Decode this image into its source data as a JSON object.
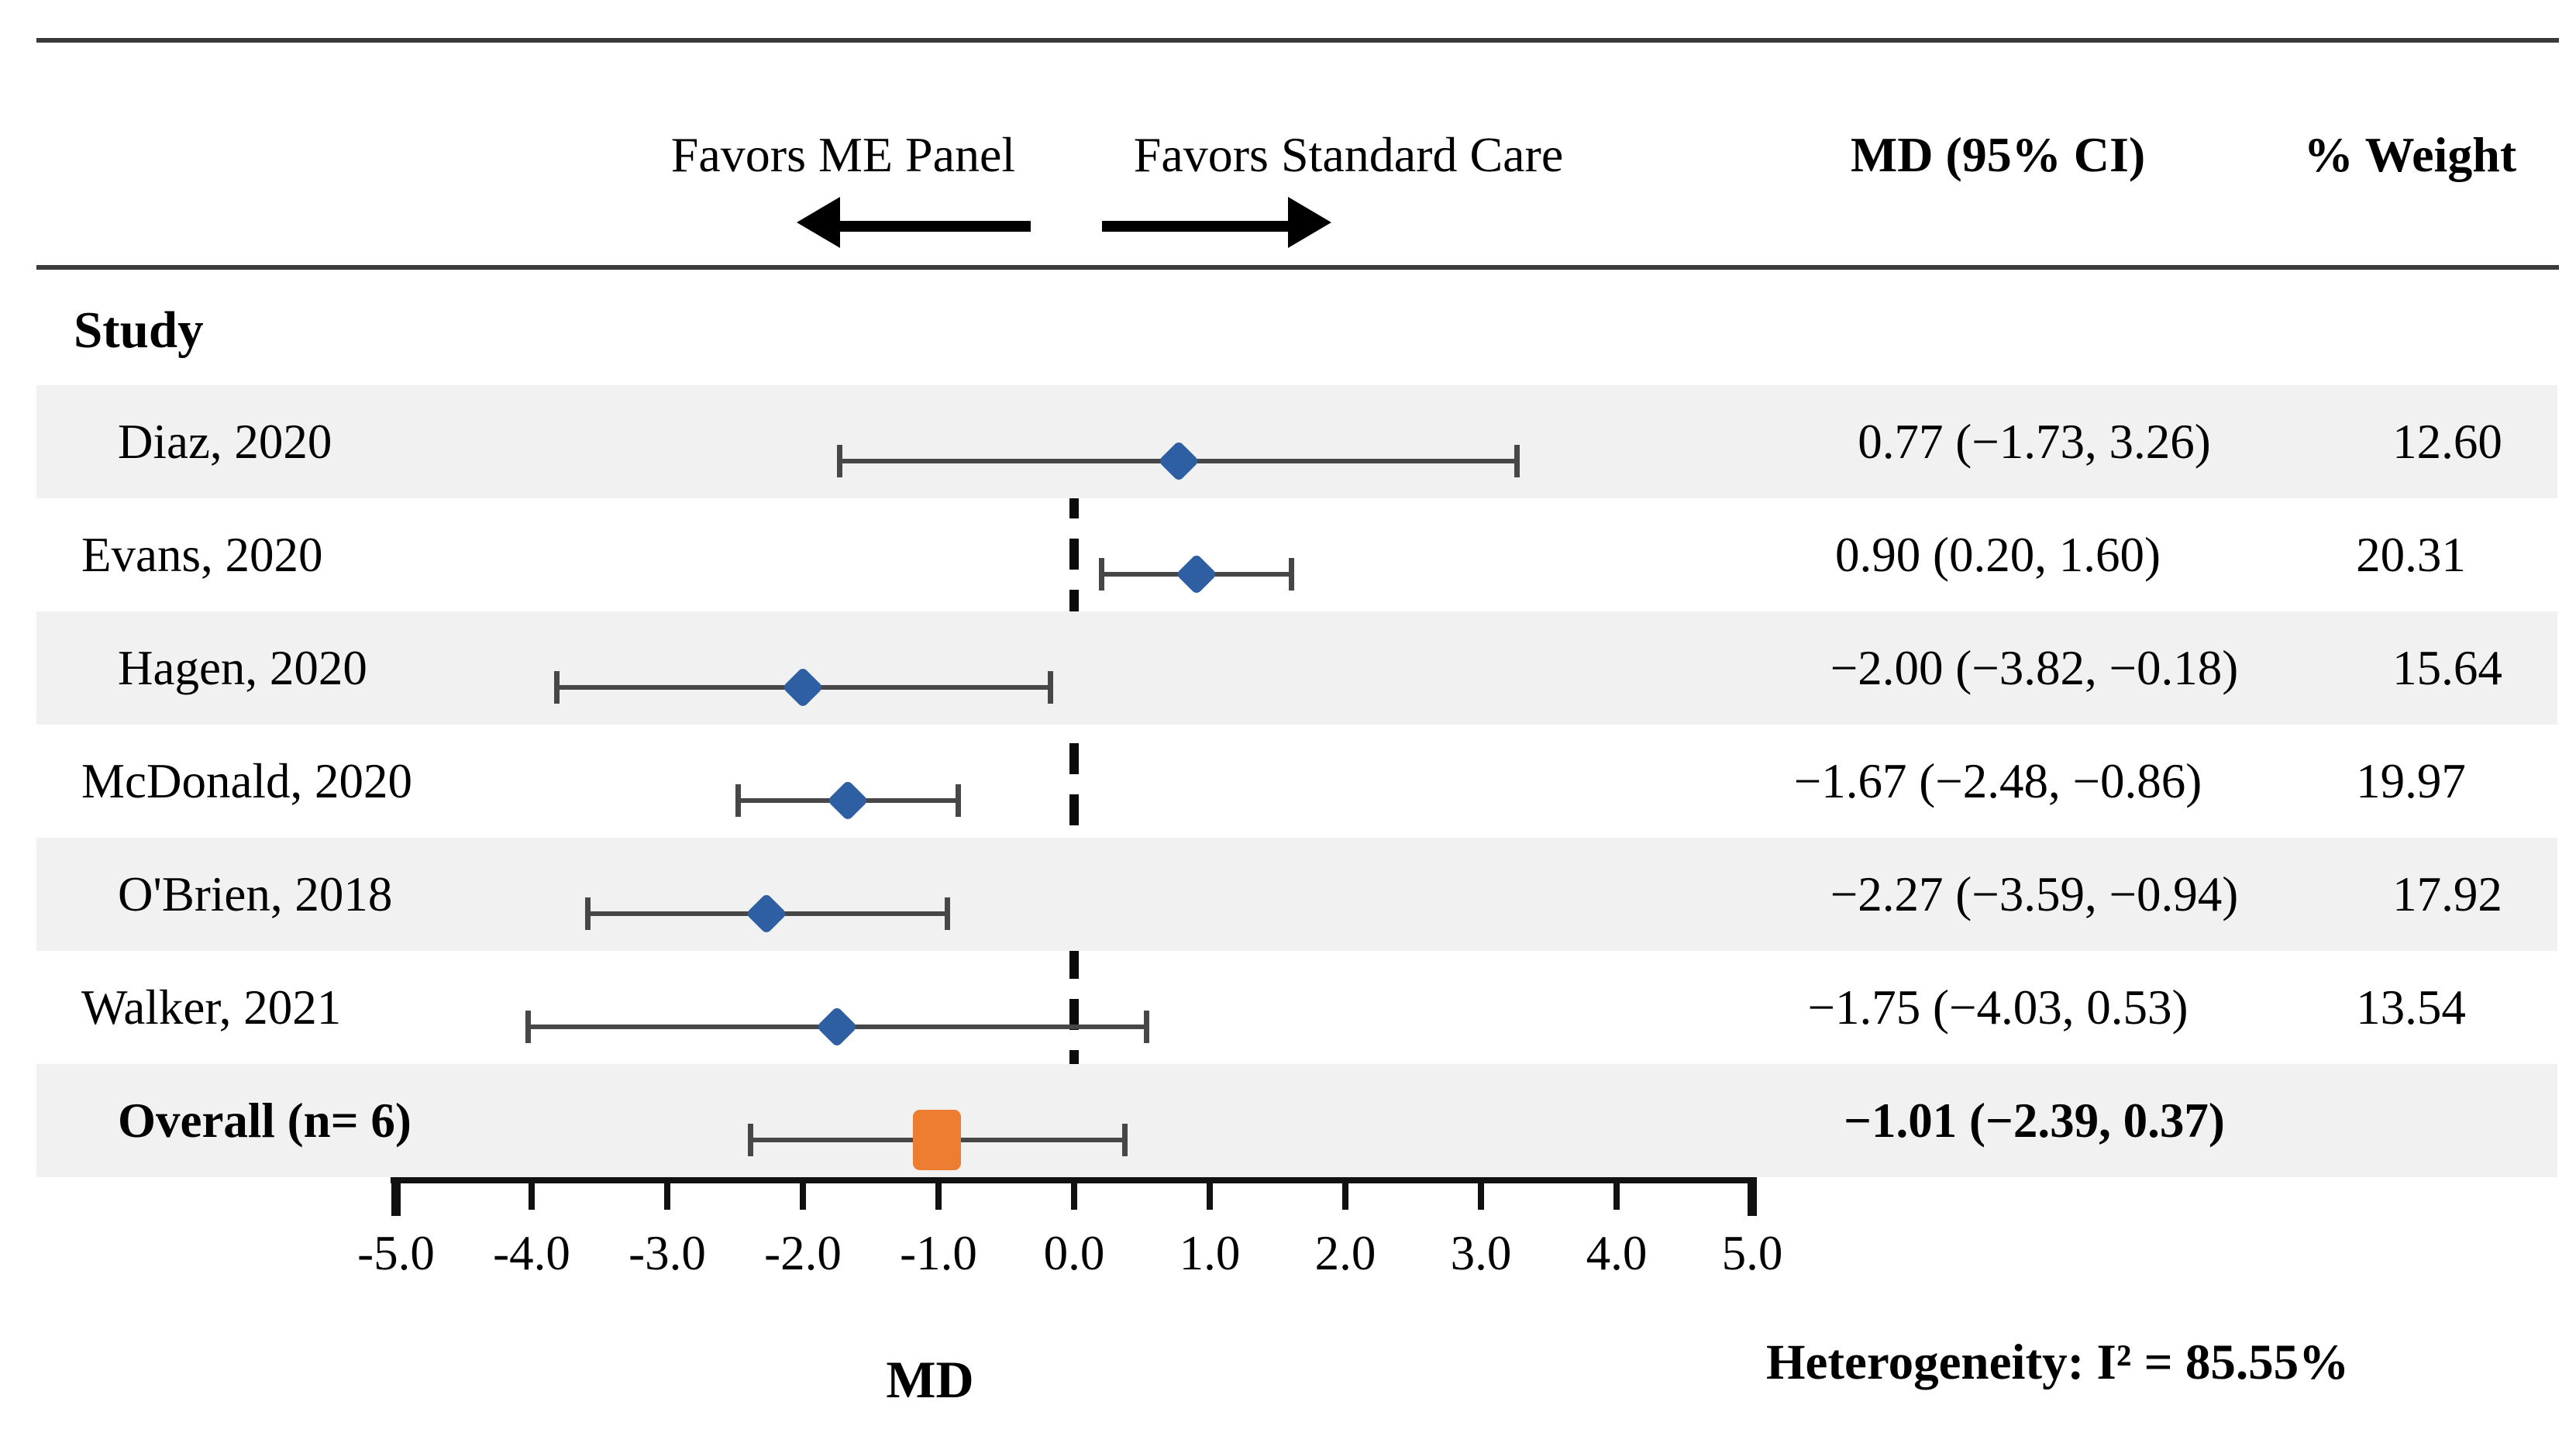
{
  "figure": {
    "header": {
      "favors_left": "Favors ME Panel",
      "favors_right": "Favors Standard Care",
      "md_ci": "MD (95% CI)",
      "weight": "% Weight",
      "study": "Study"
    },
    "footer": {
      "xlabel": "MD",
      "heterogeneity": "Heterogeneity: I² = 85.55%"
    }
  },
  "chart_data": {
    "type": "forest",
    "title": "",
    "xlabel": "MD",
    "xlim": [
      -5.0,
      5.0
    ],
    "x_ticks": [
      -5.0,
      -4.0,
      -3.0,
      -2.0,
      -1.0,
      0.0,
      1.0,
      2.0,
      3.0,
      4.0,
      5.0
    ],
    "x_tick_labels": [
      "-5.0",
      "-4.0",
      "-3.0",
      "-2.0",
      "-1.0",
      "0.0",
      "1.0",
      "2.0",
      "3.0",
      "4.0",
      "5.0"
    ],
    "zero_line_x": 0.0,
    "grid": false,
    "legend_position": "none",
    "favors_left_label": "Favors ME Panel",
    "favors_right_label": "Favors Standard Care",
    "studies": [
      {
        "label": "Diaz, 2020",
        "md": 0.77,
        "ci_low": -1.73,
        "ci_high": 3.26,
        "md_ci_text": "0.77 (−1.73, 3.26)",
        "weight_pct": 12.6,
        "weight_text": "12.60",
        "overall": false
      },
      {
        "label": "Evans, 2020",
        "md": 0.9,
        "ci_low": 0.2,
        "ci_high": 1.6,
        "md_ci_text": "0.90 (0.20, 1.60)",
        "weight_pct": 20.31,
        "weight_text": "20.31",
        "overall": false
      },
      {
        "label": "Hagen, 2020",
        "md": -2.0,
        "ci_low": -3.82,
        "ci_high": -0.18,
        "md_ci_text": "−2.00 (−3.82, −0.18)",
        "weight_pct": 15.64,
        "weight_text": "15.64",
        "overall": false
      },
      {
        "label": "McDonald, 2020",
        "md": -1.67,
        "ci_low": -2.48,
        "ci_high": -0.86,
        "md_ci_text": "−1.67 (−2.48, −0.86)",
        "weight_pct": 19.97,
        "weight_text": "19.97",
        "overall": false
      },
      {
        "label": "O'Brien, 2018",
        "md": -2.27,
        "ci_low": -3.59,
        "ci_high": -0.94,
        "md_ci_text": "−2.27 (−3.59, −0.94)",
        "weight_pct": 17.92,
        "weight_text": "17.92",
        "overall": false
      },
      {
        "label": "Walker, 2021",
        "md": -1.75,
        "ci_low": -4.03,
        "ci_high": 0.53,
        "md_ci_text": "−1.75 (−4.03, 0.53)",
        "weight_pct": 13.54,
        "weight_text": "13.54",
        "overall": false
      },
      {
        "label": "Overall (n= 6)",
        "md": -1.01,
        "ci_low": -2.39,
        "ci_high": 0.37,
        "md_ci_text": "−1.01 (−2.39, 0.37)",
        "weight_pct": null,
        "weight_text": "",
        "overall": true
      }
    ],
    "heterogeneity": "Heterogeneity: I² = 85.55%",
    "i_squared_pct": 85.55
  },
  "colors": {
    "study_marker": "#2F5FA3",
    "overall_marker": "#ED7D31",
    "ci_line": "#474747",
    "row_stripe": "#F1F1F1",
    "rule": "#3A3A3A",
    "axis": "#111111",
    "zero_line": "#0B0B0B",
    "text": "#000000",
    "background": "#FFFFFF"
  }
}
